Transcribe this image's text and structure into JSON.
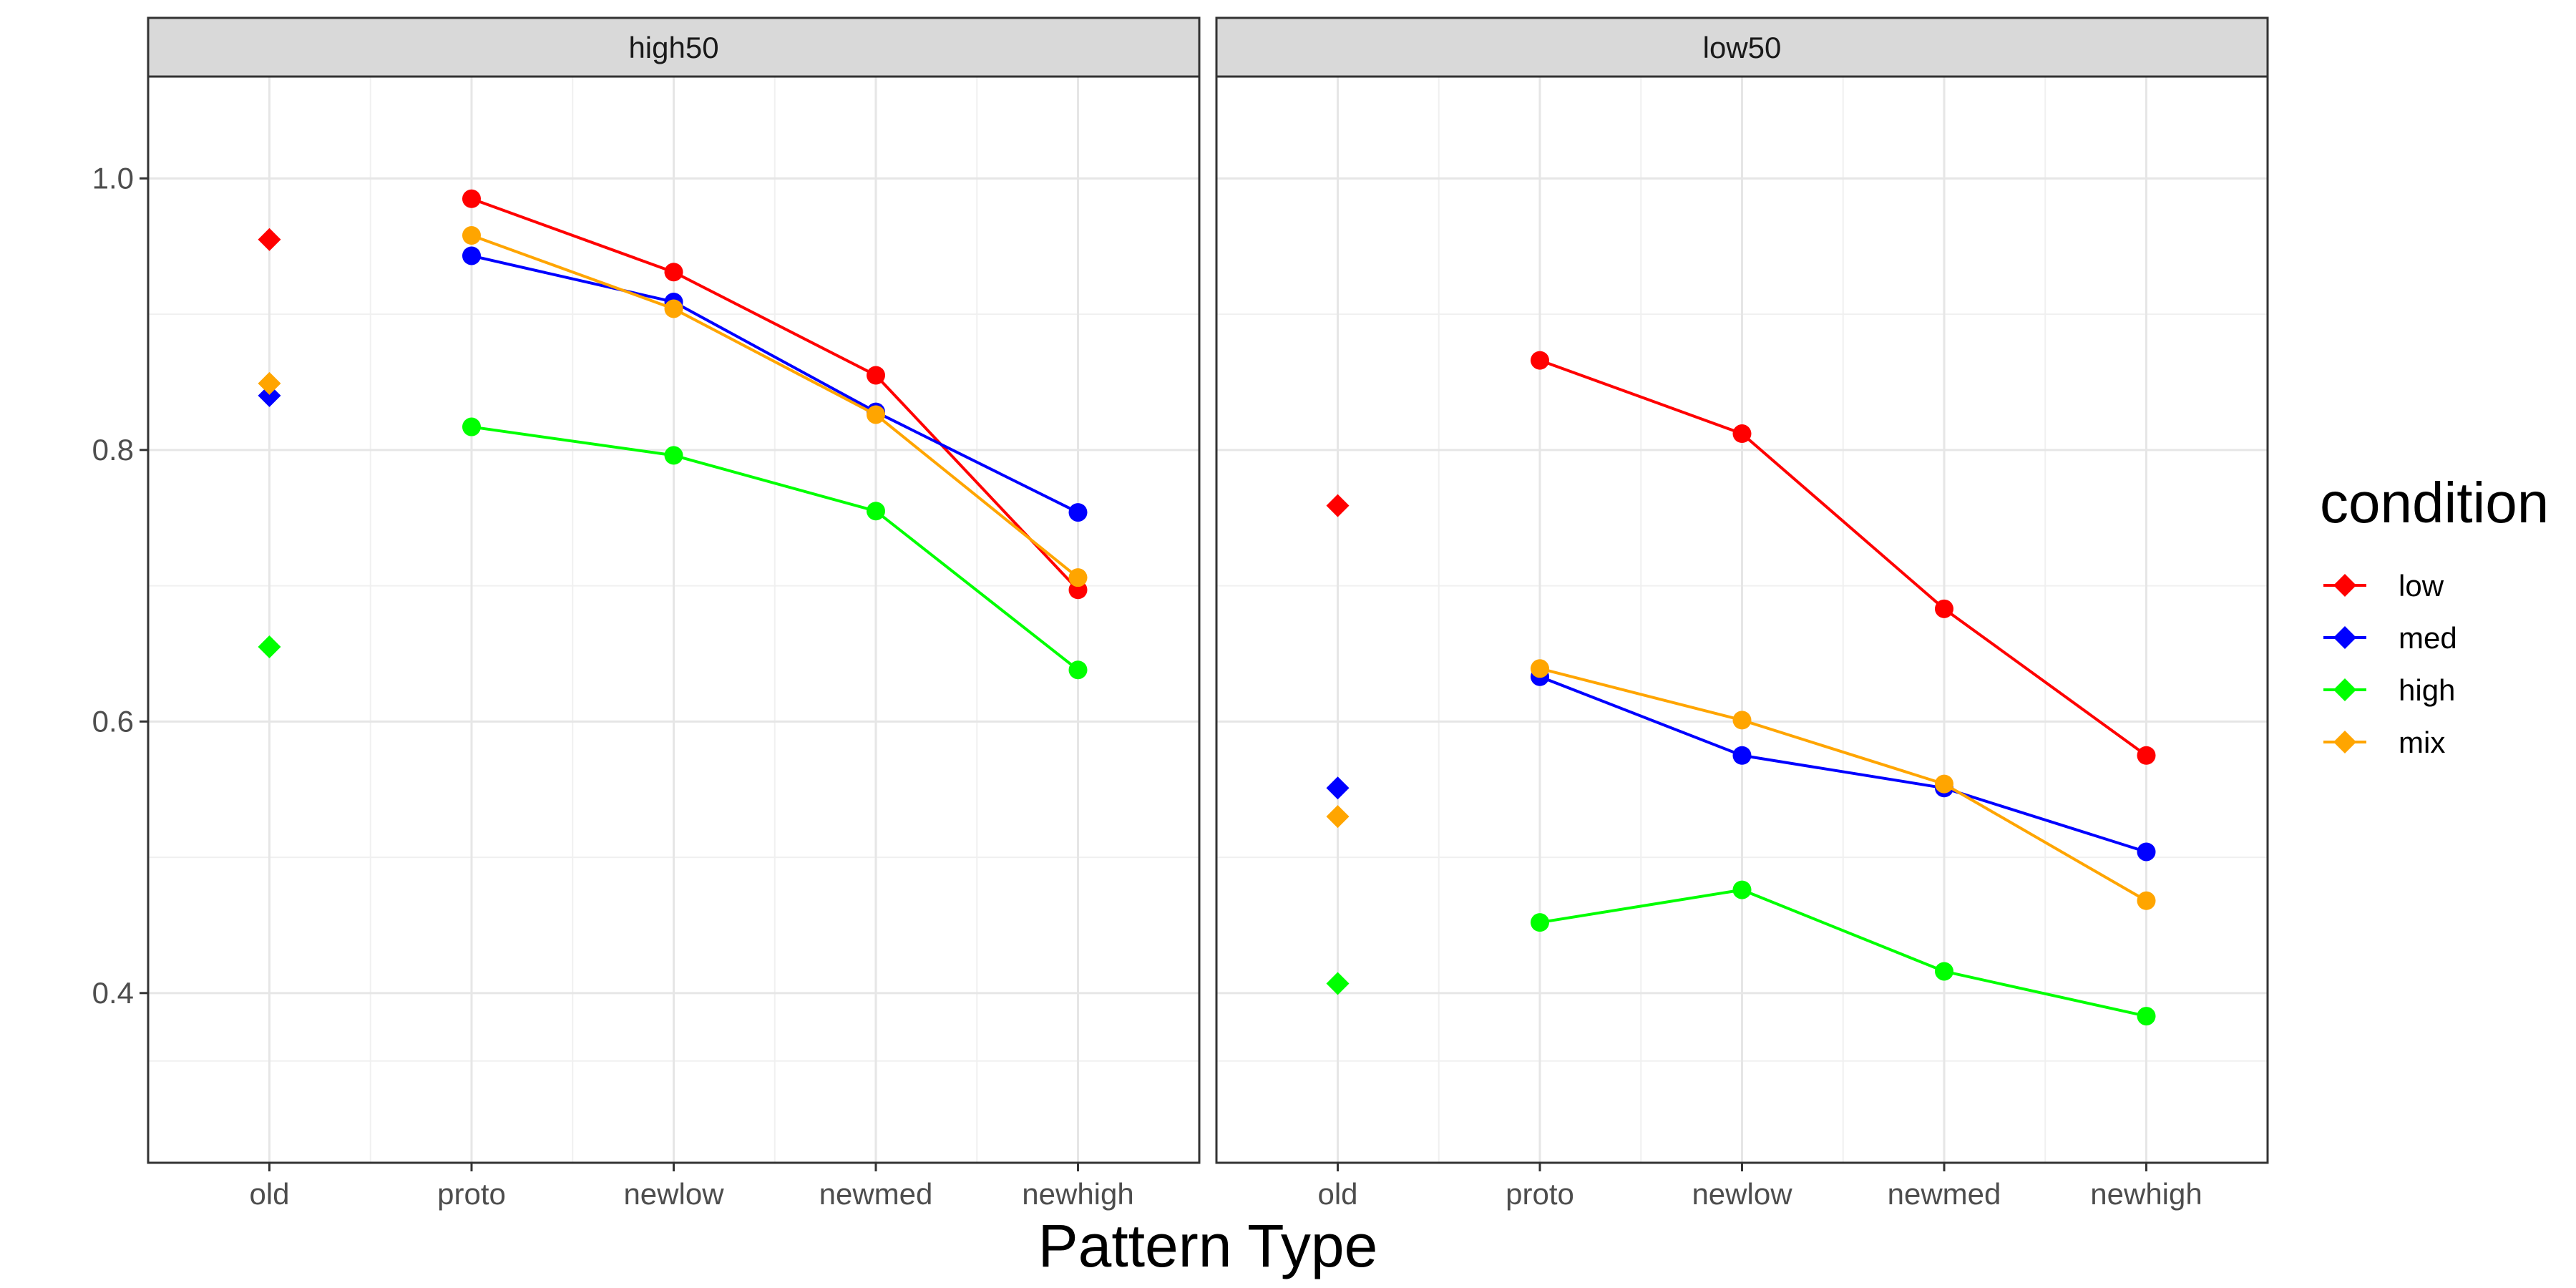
{
  "chart_data": {
    "type": "line",
    "xlabel": "Pattern Type",
    "ylabel": "",
    "ylim": [
      0.275,
      1.075
    ],
    "yticks": [
      0.4,
      0.6,
      0.8,
      1.0
    ],
    "ytick_labels": [
      "0.4",
      "0.6",
      "0.8",
      "1.0"
    ],
    "categories": [
      "old",
      "proto",
      "newlow",
      "newmed",
      "newhigh"
    ],
    "connected_categories": [
      "proto",
      "newlow",
      "newmed",
      "newhigh"
    ],
    "grid": true,
    "legend": {
      "title": "condition",
      "placement": "right",
      "entries": [
        "low",
        "med",
        "high",
        "mix"
      ]
    },
    "colors": {
      "low": "#ff0000",
      "med": "#0000ff",
      "high": "#00ff00",
      "mix": "#ffa500"
    },
    "panels": [
      {
        "strip": "high50",
        "series": [
          {
            "name": "low",
            "old": 0.955,
            "values": [
              0.985,
              0.931,
              0.855,
              0.697
            ]
          },
          {
            "name": "med",
            "old": 0.84,
            "values": [
              0.943,
              0.909,
              0.828,
              0.754
            ]
          },
          {
            "name": "high",
            "old": 0.655,
            "values": [
              0.817,
              0.796,
              0.755,
              0.638
            ]
          },
          {
            "name": "mix",
            "old": 0.849,
            "values": [
              0.958,
              0.904,
              0.826,
              0.706
            ]
          }
        ]
      },
      {
        "strip": "low50",
        "series": [
          {
            "name": "low",
            "old": 0.759,
            "values": [
              0.866,
              0.812,
              0.683,
              0.575
            ]
          },
          {
            "name": "med",
            "old": 0.551,
            "values": [
              0.633,
              0.575,
              0.551,
              0.504
            ]
          },
          {
            "name": "high",
            "old": 0.407,
            "values": [
              0.452,
              0.476,
              0.416,
              0.383
            ]
          },
          {
            "name": "mix",
            "old": 0.53,
            "values": [
              0.639,
              0.601,
              0.554,
              0.468
            ]
          }
        ]
      }
    ]
  }
}
